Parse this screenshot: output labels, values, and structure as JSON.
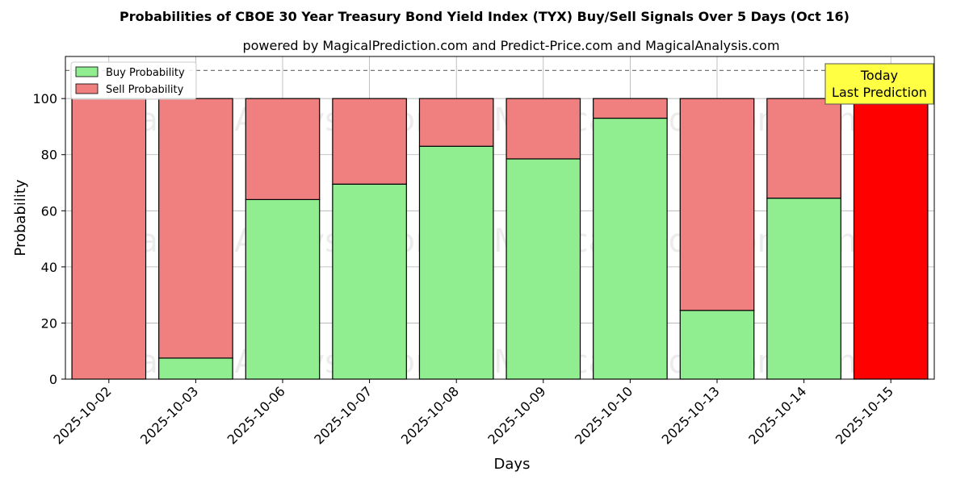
{
  "chart_data": {
    "type": "bar",
    "stacked": true,
    "title": "Probabilities of CBOE 30 Year Treasury Bond Yield Index (TYX) Buy/Sell Signals Over 5 Days (Oct 16)",
    "subtitle": "powered by MagicalPrediction.com and Predict-Price.com and MagicalAnalysis.com",
    "xlabel": "Days",
    "ylabel": "Probability",
    "ylim": [
      0,
      115
    ],
    "yticks": [
      0,
      20,
      40,
      60,
      80,
      100
    ],
    "reference_line": 110,
    "grid": true,
    "legend_position": "top-left",
    "categories": [
      "2025-10-02",
      "2025-10-03",
      "2025-10-06",
      "2025-10-07",
      "2025-10-08",
      "2025-10-09",
      "2025-10-10",
      "2025-10-13",
      "2025-10-14",
      "2025-10-15"
    ],
    "series": [
      {
        "name": "Buy Probability",
        "color": "#90EE90",
        "values": [
          0,
          7.5,
          64,
          69.5,
          83,
          78.5,
          93,
          24.5,
          64.5,
          0
        ]
      },
      {
        "name": "Sell Probability",
        "color": "#F08080",
        "values": [
          100,
          92.5,
          36,
          30.5,
          17,
          21.5,
          7,
          75.5,
          35.5,
          100
        ]
      }
    ],
    "highlight": {
      "index": 9,
      "color": "#FF0000"
    },
    "annotation": {
      "line1": "Today",
      "line2": "Last Prediction",
      "color": "#FFFF44"
    },
    "watermarks": [
      "MagicalAnalysis.com",
      "MagicalPrediction.com"
    ]
  }
}
